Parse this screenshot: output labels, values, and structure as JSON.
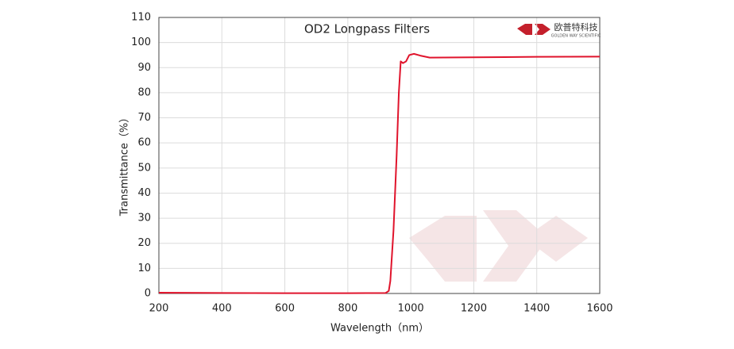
{
  "chart_data": {
    "type": "line",
    "title": "OD2  Longpass Filters",
    "brand": {
      "name": "欧普特科技",
      "subtitle": "GOLDEN WAY SCIENTIFIC"
    },
    "x_label": "Wavelength（nm）",
    "y_label": "Transmittance（%）",
    "x": [
      200,
      400,
      600,
      800,
      920,
      930,
      935,
      945,
      955,
      962,
      968,
      975,
      985,
      995,
      1010,
      1030,
      1060,
      1200,
      1400,
      1600
    ],
    "series": [
      {
        "name": "OD2 Longpass",
        "color": "#e0142c",
        "values": [
          0.3,
          0.2,
          0.1,
          0.1,
          0.2,
          1,
          5,
          25,
          55,
          80,
          92.5,
          91.8,
          92.5,
          95,
          95.5,
          94.8,
          94,
          94.1,
          94.3,
          94.4
        ]
      }
    ],
    "xlim": [
      200,
      1600
    ],
    "ylim": [
      0,
      110
    ],
    "xticks": [
      200,
      400,
      600,
      800,
      1000,
      1200,
      1400,
      1600
    ],
    "yticks": [
      0,
      10,
      20,
      30,
      40,
      50,
      60,
      70,
      80,
      90,
      100,
      110
    ],
    "grid": true
  }
}
